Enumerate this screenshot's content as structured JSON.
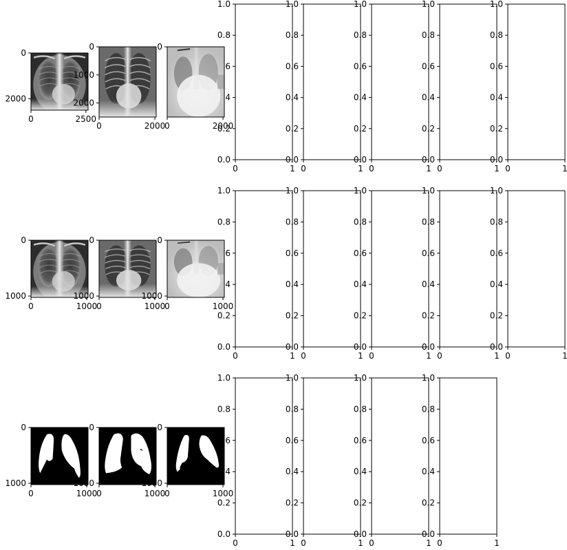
{
  "chart_data": {
    "type": "image-grid",
    "rows": 3,
    "cols": 8,
    "image_panels": [
      {
        "row": 0,
        "col": 0,
        "content": "chest x-ray",
        "xlim": [
          0,
          2600
        ],
        "ylim": [
          0,
          2500
        ],
        "xticks": [
          0,
          2500
        ],
        "xtick_labels": [
          "0",
          "2500"
        ],
        "yticks": [
          0,
          2000
        ],
        "ytick_labels": [
          "0",
          "2000"
        ]
      },
      {
        "row": 0,
        "col": 1,
        "content": "chest x-ray",
        "xlim": [
          0,
          2048
        ],
        "ylim": [
          0,
          2500
        ],
        "xticks": [
          0,
          2000
        ],
        "xtick_labels": [
          "0",
          "2000"
        ],
        "yticks": [
          0,
          1000,
          2000
        ],
        "ytick_labels": [
          "0",
          "1000",
          "2000"
        ]
      },
      {
        "row": 0,
        "col": 2,
        "content": "chest x-ray",
        "xlim": [
          0,
          2048
        ],
        "ylim": [
          0,
          2500
        ],
        "xticks": [
          0,
          2000
        ],
        "xtick_labels": [
          "0",
          "2000"
        ],
        "yticks": [
          0
        ],
        "ytick_labels": [
          "0"
        ]
      },
      {
        "row": 1,
        "col": 0,
        "content": "resized chest x-ray",
        "xlim": [
          0,
          1024
        ],
        "ylim": [
          0,
          1024
        ],
        "xticks": [
          0,
          1000
        ],
        "xtick_labels": [
          "0",
          "1000"
        ],
        "yticks": [
          0,
          1000
        ],
        "ytick_labels": [
          "0",
          "1000"
        ]
      },
      {
        "row": 1,
        "col": 1,
        "content": "resized chest x-ray",
        "xlim": [
          0,
          1024
        ],
        "ylim": [
          0,
          1024
        ],
        "xticks": [
          0,
          1000
        ],
        "xtick_labels": [
          "0",
          "1000"
        ],
        "yticks": [
          0,
          1000
        ],
        "ytick_labels": [
          "0",
          "1000"
        ]
      },
      {
        "row": 1,
        "col": 2,
        "content": "resized chest x-ray",
        "xlim": [
          0,
          1024
        ],
        "ylim": [
          0,
          1024
        ],
        "xticks": [
          0,
          1000
        ],
        "xtick_labels": [
          "0",
          "1000"
        ],
        "yticks": [
          0,
          1000
        ],
        "ytick_labels": [
          "0",
          "1000"
        ]
      },
      {
        "row": 2,
        "col": 0,
        "content": "lung mask",
        "xlim": [
          0,
          1024
        ],
        "ylim": [
          0,
          1024
        ],
        "xticks": [
          0,
          1000
        ],
        "xtick_labels": [
          "0",
          "1000"
        ],
        "yticks": [
          0,
          1000
        ],
        "ytick_labels": [
          "0",
          "1000"
        ]
      },
      {
        "row": 2,
        "col": 1,
        "content": "lung mask",
        "xlim": [
          0,
          1024
        ],
        "ylim": [
          0,
          1024
        ],
        "xticks": [
          0,
          1000
        ],
        "xtick_labels": [
          "0",
          "1000"
        ],
        "yticks": [
          0,
          1000
        ],
        "ytick_labels": [
          "0",
          "1000"
        ]
      },
      {
        "row": 2,
        "col": 2,
        "content": "lung mask",
        "xlim": [
          0,
          1024
        ],
        "ylim": [
          0,
          1024
        ],
        "xticks": [
          0,
          1000
        ],
        "xtick_labels": [
          "0",
          "1000"
        ],
        "yticks": [
          0,
          1000
        ],
        "ytick_labels": [
          "0",
          "1000"
        ]
      }
    ],
    "empty_panels": {
      "row_cols": [
        [
          3,
          4,
          5,
          6,
          7
        ],
        [
          3,
          4,
          5,
          6,
          7
        ],
        [
          3,
          4,
          5,
          6
        ]
      ],
      "xlim": [
        0,
        1
      ],
      "ylim": [
        0,
        1
      ],
      "xticks": [
        0,
        1
      ],
      "xtick_labels": [
        "0",
        "1"
      ],
      "yticks": [
        0,
        0.2,
        0.4,
        0.6,
        0.8,
        1.0
      ],
      "ytick_labels": [
        "0.0",
        "0.2",
        "0.4",
        "0.6",
        "0.8",
        "1.0"
      ]
    },
    "colors": {
      "axis": "#000000",
      "background": "#ffffff",
      "mask_fill": "#ffffff",
      "mask_bg": "#000000"
    }
  }
}
